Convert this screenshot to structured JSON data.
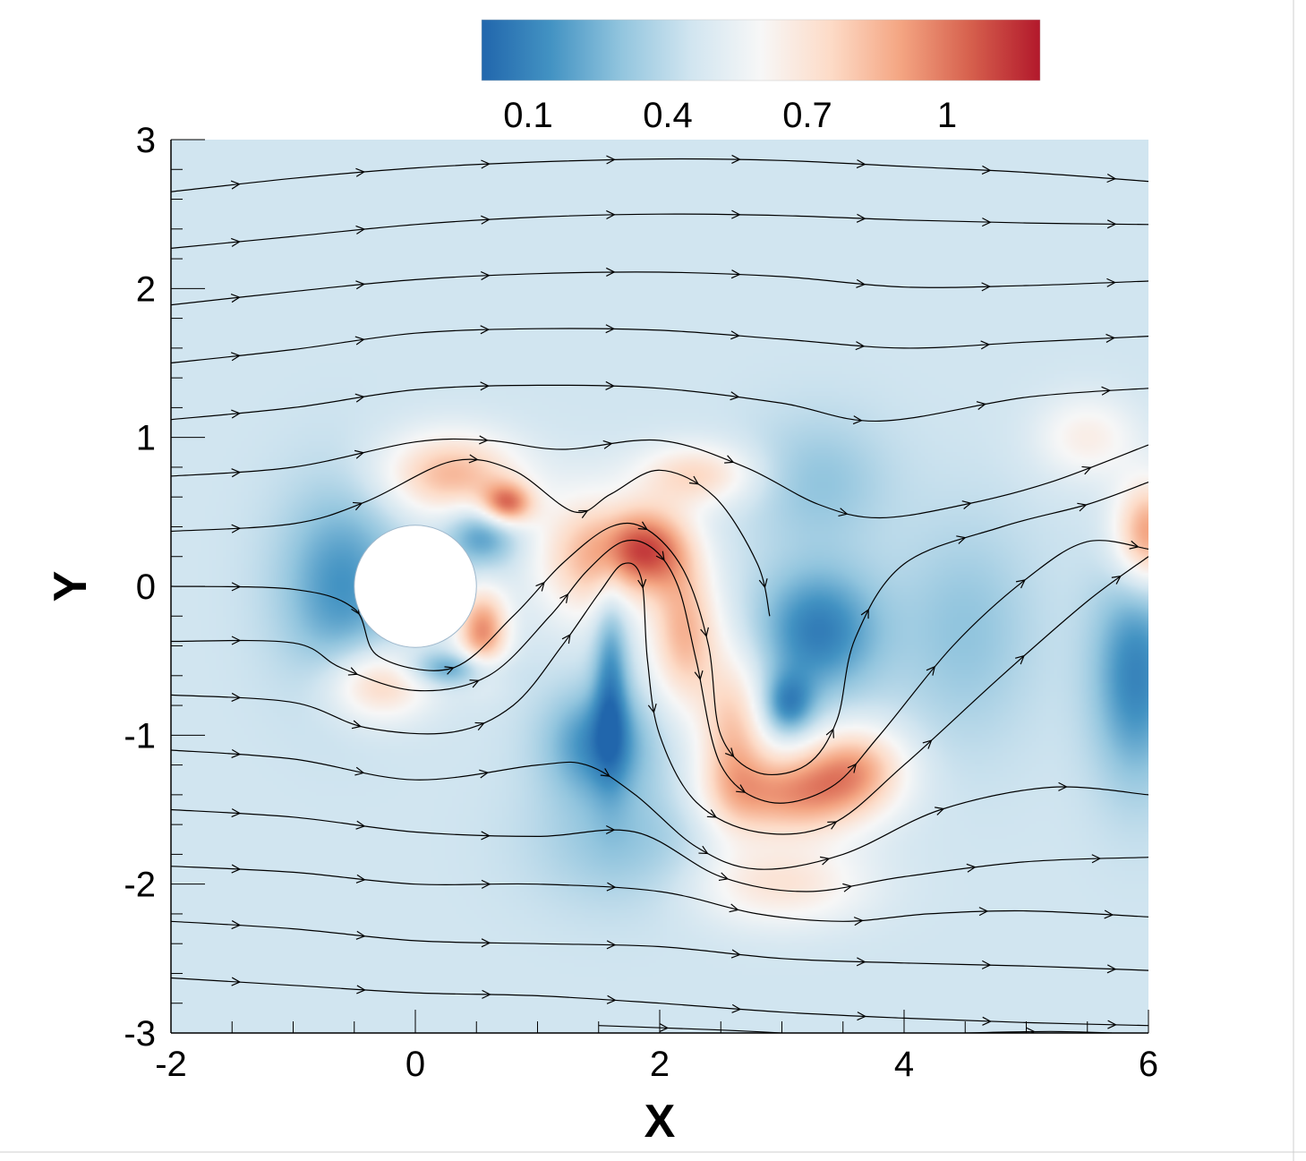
{
  "chart_data": {
    "type": "heatmap",
    "title": "",
    "xlabel": "X",
    "ylabel": "Y",
    "xlim": [
      -2,
      6
    ],
    "ylim": [
      -3,
      3
    ],
    "x_ticks": [
      -2,
      0,
      2,
      4,
      6
    ],
    "x_tick_labels": [
      "-2",
      "0",
      "2",
      "4",
      "6"
    ],
    "y_ticks": [
      -3,
      -2,
      -1,
      0,
      1,
      2,
      3
    ],
    "y_tick_labels": [
      "-3",
      "-2",
      "-1",
      "0",
      "1",
      "2",
      "3"
    ],
    "grid": false,
    "colorbar": {
      "placement": "top",
      "range": [
        0,
        1.2
      ],
      "tick_values": [
        0.1,
        0.4,
        0.7,
        1.0
      ],
      "tick_labels": [
        "0.1",
        "0.4",
        "0.7",
        "1"
      ],
      "colormap": [
        "#2166ac",
        "#4393c3",
        "#92c5de",
        "#d1e5f0",
        "#f7f7f7",
        "#fddbc7",
        "#f4a582",
        "#d6604d",
        "#b2182b"
      ]
    },
    "background_value": 0.45,
    "obstacle": {
      "shape": "circle",
      "center": [
        0,
        0
      ],
      "radius": 0.5,
      "fill": "#ffffff"
    },
    "field_features": [
      {
        "x": -0.6,
        "y": 0.0,
        "value": 0.15,
        "sx": 0.35,
        "sy": 0.45
      },
      {
        "x": 0.3,
        "y": 0.75,
        "value": 0.85,
        "sx": 0.4,
        "sy": 0.2
      },
      {
        "x": 0.75,
        "y": 0.55,
        "value": 0.95,
        "sx": 0.15,
        "sy": 0.1
      },
      {
        "x": 0.55,
        "y": 0.35,
        "value": 0.15,
        "sx": 0.2,
        "sy": 0.15
      },
      {
        "x": 0.55,
        "y": -0.3,
        "value": 0.95,
        "sx": 0.15,
        "sy": 0.2
      },
      {
        "x": 0.3,
        "y": -0.55,
        "value": 0.15,
        "sx": 0.25,
        "sy": 0.08
      },
      {
        "x": -0.3,
        "y": -0.65,
        "value": 0.8,
        "sx": 0.3,
        "sy": 0.18
      },
      {
        "x": 1.9,
        "y": 0.25,
        "value": 1.0,
        "sx": 0.25,
        "sy": 0.2
      },
      {
        "x": 1.4,
        "y": 0.2,
        "value": 0.8,
        "sx": 0.3,
        "sy": 0.3
      },
      {
        "x": 1.6,
        "y": -0.6,
        "value": 0.15,
        "sx": 0.1,
        "sy": 0.45
      },
      {
        "x": 1.5,
        "y": -1.05,
        "value": 0.12,
        "sx": 0.3,
        "sy": 0.25
      },
      {
        "x": 2.2,
        "y": -0.3,
        "value": 0.85,
        "sx": 0.2,
        "sy": 0.35
      },
      {
        "x": 2.6,
        "y": -1.0,
        "value": 0.8,
        "sx": 0.2,
        "sy": 0.4
      },
      {
        "x": 3.1,
        "y": -1.4,
        "value": 0.9,
        "sx": 0.45,
        "sy": 0.2
      },
      {
        "x": 3.6,
        "y": -1.2,
        "value": 0.8,
        "sx": 0.3,
        "sy": 0.2
      },
      {
        "x": 3.3,
        "y": -0.3,
        "value": 0.08,
        "sx": 0.35,
        "sy": 0.3
      },
      {
        "x": 3.05,
        "y": -0.8,
        "value": 0.12,
        "sx": 0.15,
        "sy": 0.15
      },
      {
        "x": 3.3,
        "y": 0.7,
        "value": 0.3,
        "sx": 0.4,
        "sy": 0.3
      },
      {
        "x": 2.3,
        "y": 0.75,
        "value": 0.75,
        "sx": 0.35,
        "sy": 0.15
      },
      {
        "x": 3.0,
        "y": -2.0,
        "value": 0.7,
        "sx": 0.5,
        "sy": 0.2
      },
      {
        "x": 6.0,
        "y": 0.35,
        "value": 0.95,
        "sx": 0.2,
        "sy": 0.25
      },
      {
        "x": 5.9,
        "y": -0.6,
        "value": 0.1,
        "sx": 0.25,
        "sy": 0.5
      },
      {
        "x": 1.7,
        "y": -1.7,
        "value": 0.3,
        "sx": 0.5,
        "sy": 0.3
      },
      {
        "x": 5.5,
        "y": 1.0,
        "value": 0.65,
        "sx": 0.3,
        "sy": 0.2
      },
      {
        "x": 4.5,
        "y": -0.3,
        "value": 0.3,
        "sx": 0.4,
        "sy": 0.5
      }
    ],
    "streamlines": [
      [
        [
          -2,
          2.65
        ],
        [
          -1,
          2.74
        ],
        [
          0,
          2.81
        ],
        [
          1,
          2.85
        ],
        [
          2,
          2.87
        ],
        [
          3,
          2.86
        ],
        [
          4,
          2.82
        ],
        [
          5,
          2.78
        ],
        [
          6,
          2.72
        ]
      ],
      [
        [
          -2,
          2.27
        ],
        [
          -1,
          2.35
        ],
        [
          0,
          2.43
        ],
        [
          1,
          2.48
        ],
        [
          2,
          2.5
        ],
        [
          3,
          2.49
        ],
        [
          4,
          2.46
        ],
        [
          5,
          2.44
        ],
        [
          6,
          2.43
        ]
      ],
      [
        [
          -2,
          1.89
        ],
        [
          -1,
          1.98
        ],
        [
          0,
          2.06
        ],
        [
          1,
          2.1
        ],
        [
          2,
          2.11
        ],
        [
          3,
          2.08
        ],
        [
          4,
          2.01
        ],
        [
          5,
          2.02
        ],
        [
          6,
          2.05
        ]
      ],
      [
        [
          -2,
          1.5
        ],
        [
          -1,
          1.59
        ],
        [
          0,
          1.7
        ],
        [
          1,
          1.73
        ],
        [
          2,
          1.72
        ],
        [
          3,
          1.66
        ],
        [
          4,
          1.6
        ],
        [
          5,
          1.64
        ],
        [
          6,
          1.68
        ]
      ],
      [
        [
          -2,
          1.12
        ],
        [
          -1,
          1.2
        ],
        [
          0,
          1.32
        ],
        [
          1,
          1.35
        ],
        [
          2,
          1.33
        ],
        [
          3,
          1.23
        ],
        [
          3.8,
          1.11
        ],
        [
          5,
          1.27
        ],
        [
          6,
          1.33
        ]
      ],
      [
        [
          -2,
          0.74
        ],
        [
          -1,
          0.8
        ],
        [
          0,
          0.97
        ],
        [
          0.6,
          0.98
        ],
        [
          1.2,
          0.92
        ],
        [
          2,
          0.98
        ],
        [
          2.7,
          0.8
        ],
        [
          3.3,
          0.55
        ],
        [
          3.8,
          0.46
        ],
        [
          4.5,
          0.55
        ],
        [
          5.2,
          0.7
        ],
        [
          6,
          0.95
        ]
      ],
      [
        [
          -2,
          0.37
        ],
        [
          -1,
          0.42
        ],
        [
          -0.4,
          0.57
        ],
        [
          0.3,
          0.84
        ],
        [
          0.8,
          0.78
        ],
        [
          1.3,
          0.5
        ],
        [
          1.6,
          0.62
        ],
        [
          2.0,
          0.78
        ],
        [
          2.45,
          0.6
        ],
        [
          2.8,
          0.15
        ],
        [
          2.9,
          -0.2
        ]
      ],
      [
        [
          -2,
          0.0
        ],
        [
          -1,
          -0.02
        ],
        [
          -0.5,
          -0.15
        ],
        [
          -0.3,
          -0.47
        ],
        [
          0.3,
          -0.55
        ],
        [
          0.8,
          -0.2
        ],
        [
          1.2,
          0.15
        ],
        [
          1.6,
          0.4
        ],
        [
          1.9,
          0.38
        ],
        [
          2.2,
          0.1
        ],
        [
          2.4,
          -0.4
        ],
        [
          2.5,
          -1.0
        ],
        [
          2.8,
          -1.25
        ],
        [
          3.2,
          -1.2
        ],
        [
          3.45,
          -0.9
        ],
        [
          3.6,
          -0.35
        ],
        [
          4.0,
          0.15
        ],
        [
          4.8,
          0.4
        ],
        [
          5.5,
          0.55
        ],
        [
          6,
          0.7
        ]
      ],
      [
        [
          -2,
          -0.37
        ],
        [
          -1,
          -0.38
        ],
        [
          -0.6,
          -0.55
        ],
        [
          0,
          -0.7
        ],
        [
          0.6,
          -0.6
        ],
        [
          1.1,
          -0.2
        ],
        [
          1.4,
          0.1
        ],
        [
          1.7,
          0.3
        ],
        [
          1.95,
          0.25
        ],
        [
          2.15,
          0.0
        ],
        [
          2.3,
          -0.5
        ],
        [
          2.5,
          -1.2
        ],
        [
          2.9,
          -1.45
        ],
        [
          3.4,
          -1.35
        ],
        [
          3.8,
          -1.0
        ],
        [
          4.4,
          -0.4
        ],
        [
          5.0,
          0.05
        ],
        [
          5.5,
          0.3
        ],
        [
          6,
          0.25
        ]
      ],
      [
        [
          -2,
          -0.73
        ],
        [
          -1,
          -0.78
        ],
        [
          -0.4,
          -0.95
        ],
        [
          0.3,
          -0.98
        ],
        [
          0.8,
          -0.8
        ],
        [
          1.2,
          -0.4
        ],
        [
          1.5,
          -0.05
        ],
        [
          1.7,
          0.15
        ],
        [
          1.85,
          0.05
        ],
        [
          1.9,
          -0.5
        ],
        [
          2.0,
          -1.0
        ],
        [
          2.3,
          -1.45
        ],
        [
          2.8,
          -1.65
        ],
        [
          3.4,
          -1.6
        ],
        [
          4.0,
          -1.2
        ],
        [
          4.8,
          -0.6
        ],
        [
          5.5,
          -0.1
        ],
        [
          6,
          0.2
        ]
      ],
      [
        [
          -2,
          -1.1
        ],
        [
          -1,
          -1.16
        ],
        [
          0,
          -1.3
        ],
        [
          1,
          -1.2
        ],
        [
          1.4,
          -1.2
        ],
        [
          1.8,
          -1.4
        ],
        [
          2.3,
          -1.75
        ],
        [
          2.8,
          -1.9
        ],
        [
          3.5,
          -1.8
        ],
        [
          4.3,
          -1.5
        ],
        [
          5.2,
          -1.35
        ],
        [
          6,
          -1.4
        ]
      ],
      [
        [
          -2,
          -1.5
        ],
        [
          -1,
          -1.55
        ],
        [
          0,
          -1.65
        ],
        [
          1,
          -1.68
        ],
        [
          1.8,
          -1.65
        ],
        [
          2.5,
          -1.95
        ],
        [
          3.2,
          -2.05
        ],
        [
          4,
          -1.95
        ],
        [
          5,
          -1.85
        ],
        [
          6,
          -1.82
        ]
      ],
      [
        [
          -2,
          -1.88
        ],
        [
          -1,
          -1.92
        ],
        [
          0,
          -2.0
        ],
        [
          1,
          -2.0
        ],
        [
          2,
          -2.05
        ],
        [
          2.8,
          -2.2
        ],
        [
          3.5,
          -2.25
        ],
        [
          4.2,
          -2.2
        ],
        [
          5,
          -2.18
        ],
        [
          6,
          -2.22
        ]
      ],
      [
        [
          -2,
          -2.25
        ],
        [
          -1,
          -2.3
        ],
        [
          0,
          -2.38
        ],
        [
          1,
          -2.4
        ],
        [
          2,
          -2.42
        ],
        [
          3,
          -2.5
        ],
        [
          4,
          -2.53
        ],
        [
          5,
          -2.55
        ],
        [
          6,
          -2.58
        ]
      ],
      [
        [
          -2,
          -2.63
        ],
        [
          -1,
          -2.68
        ],
        [
          0,
          -2.73
        ],
        [
          1,
          -2.75
        ],
        [
          2,
          -2.8
        ],
        [
          3,
          -2.86
        ],
        [
          4,
          -2.9
        ],
        [
          5,
          -2.93
        ],
        [
          6,
          -2.95
        ]
      ],
      [
        [
          1.5,
          -2.95
        ],
        [
          2.5,
          -2.98
        ],
        [
          3.0,
          -3.0
        ]
      ],
      [
        [
          4.5,
          -3.0
        ],
        [
          5.2,
          -2.99
        ],
        [
          5.7,
          -3.0
        ]
      ]
    ]
  }
}
